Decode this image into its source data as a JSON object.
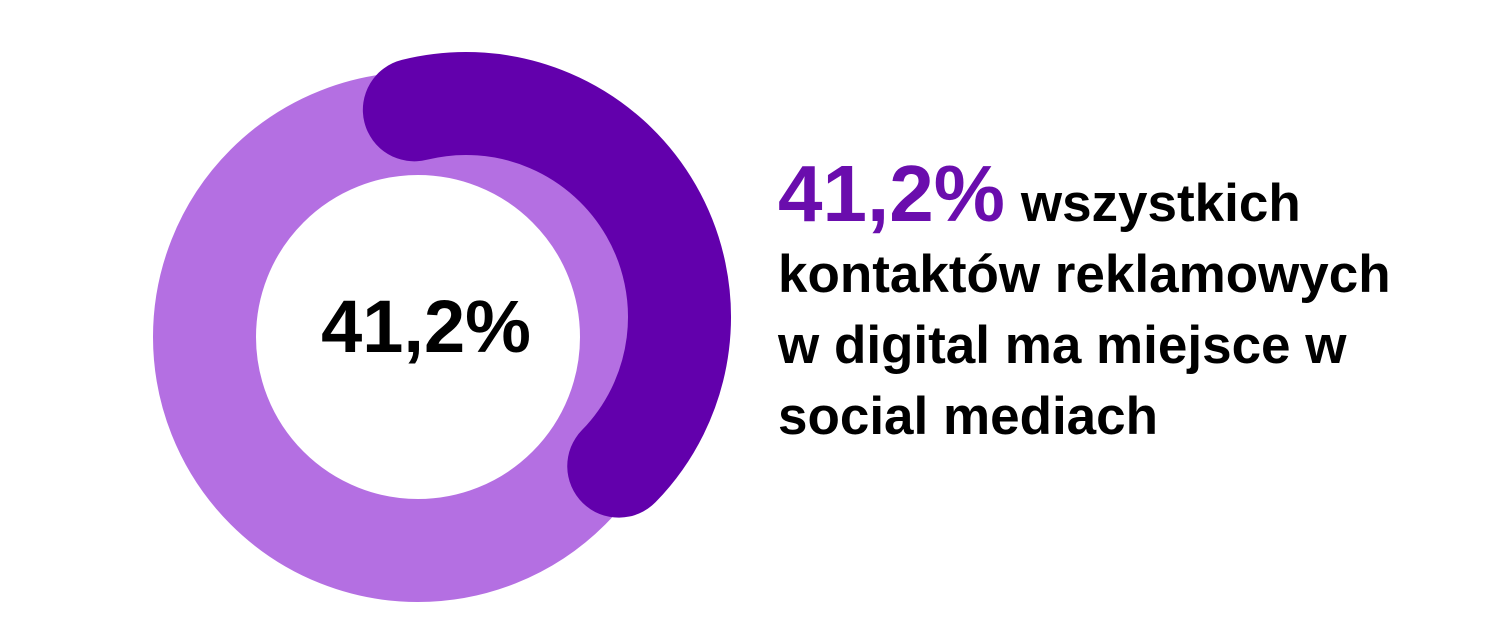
{
  "chart_data": {
    "type": "pie",
    "variant": "donut",
    "values": [
      41.2,
      58.8
    ],
    "colors": [
      "#6200ac",
      "#b46fe2"
    ],
    "center_label": "41,2%"
  },
  "caption": {
    "highlight": "41,2%",
    "line1_rest": "wszystkich",
    "line2": "kontaktów reklamowych",
    "line3": "w digital ma miejsce w",
    "line4": "social mediach"
  },
  "colors": {
    "highlight": "#6a0dad"
  }
}
